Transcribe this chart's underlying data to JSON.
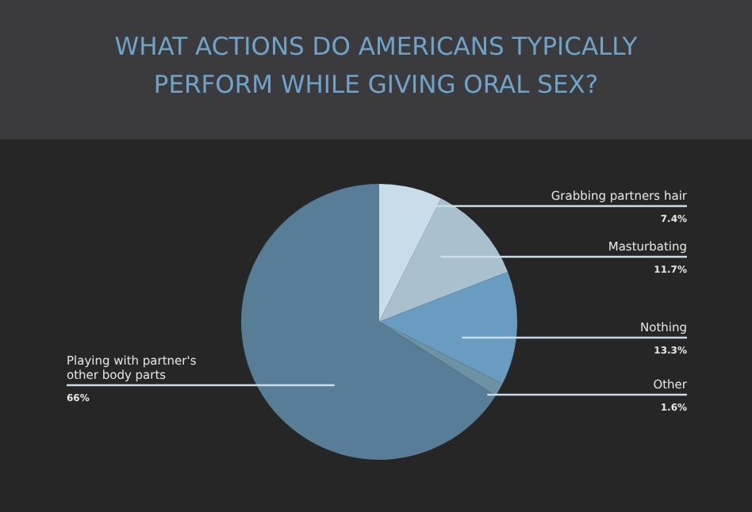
{
  "chart_data": {
    "type": "pie",
    "title": "WHAT ACTIONS DO AMERICANS TYPICALLY PERFORM WHILE GIVING ORAL SEX?",
    "categories": [
      "Grabbing partners hair",
      "Masturbating",
      "Nothing",
      "Other",
      "Playing with partner's other body parts"
    ],
    "values": [
      7.4,
      11.7,
      13.3,
      1.6,
      66
    ],
    "value_labels": [
      "7.4%",
      "11.7%",
      "13.3%",
      "1.6%",
      "66%"
    ],
    "colors": [
      "#c8dde9",
      "#a9c1cf",
      "#6a9cc1",
      "#6c92a3",
      "#577d97"
    ],
    "legend": false
  }
}
